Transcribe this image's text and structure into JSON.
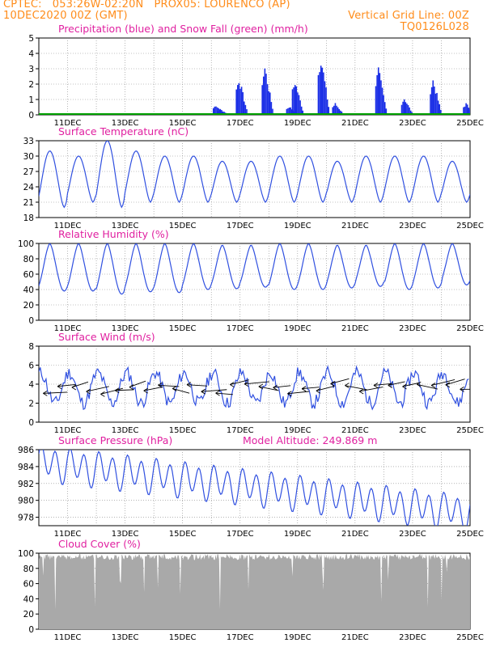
{
  "header": {
    "line1_left": "CPTEC:   053:26W-02:20N   PROX05: LOURENCO (AP)",
    "line2_left": "10DEC2020 00Z (GMT)",
    "line2_right": "Vertical Grid Line: 00Z",
    "line3_right": "TQ0126L028"
  },
  "colors": {
    "header": "#ff8c1a",
    "title": "#e020a0",
    "precip": "#1a2ee6",
    "snow": "#00a000",
    "line": "#3050e0",
    "wind_arrow": "#000000",
    "cloud": "#a9a9a9",
    "grid": "#888888"
  },
  "x_labels": [
    "11DEC",
    "13DEC",
    "15DEC",
    "17DEC",
    "19DEC",
    "21DEC",
    "23DEC",
    "25DEC"
  ],
  "chart_data": [
    {
      "type": "bar",
      "title": "Precipitation (blue) and Snow Fall (green) (mm/h)",
      "ylim": [
        0,
        5
      ],
      "yticks": [
        0,
        1,
        2,
        3,
        4,
        5
      ],
      "series": [
        {
          "name": "Precipitation",
          "color": "#1a2ee6",
          "bursts": [
            {
              "day": 6.05,
              "peak": 0.7
            },
            {
              "day": 6.2,
              "peak": 0.4
            },
            {
              "day": 6.85,
              "peak": 2.6
            },
            {
              "day": 7.75,
              "peak": 3.4
            },
            {
              "day": 8.6,
              "peak": 0.6
            },
            {
              "day": 8.8,
              "peak": 2.4
            },
            {
              "day": 9.7,
              "peak": 4.2
            },
            {
              "day": 10.2,
              "peak": 0.8
            },
            {
              "day": 11.7,
              "peak": 3.2
            },
            {
              "day": 12.6,
              "peak": 1.2
            },
            {
              "day": 13.6,
              "peak": 2.5
            },
            {
              "day": 14.75,
              "peak": 0.8
            }
          ]
        },
        {
          "name": "Snow Fall",
          "color": "#00a000",
          "value": 0
        }
      ]
    },
    {
      "type": "line",
      "title": "Surface Temperature (nC)",
      "ylim": [
        18,
        33
      ],
      "yticks": [
        18,
        21,
        24,
        27,
        30,
        33
      ],
      "series": [
        {
          "name": "Temperature",
          "daily_max": [
            31,
            30,
            33,
            31,
            30,
            30,
            29,
            29,
            30,
            30,
            29,
            30,
            30,
            30,
            29
          ],
          "daily_min": [
            20,
            21,
            20,
            21,
            21,
            21,
            21,
            21,
            21,
            21,
            21,
            21,
            21,
            21,
            21
          ]
        }
      ]
    },
    {
      "type": "line",
      "title": "Relative Humidity (%)",
      "ylim": [
        0,
        100
      ],
      "yticks": [
        0,
        20,
        40,
        60,
        80,
        100
      ],
      "series": [
        {
          "name": "Relative Humidity",
          "daily_max": [
            100,
            100,
            100,
            100,
            100,
            100,
            98,
            98,
            100,
            100,
            98,
            98,
            100,
            100,
            100
          ],
          "daily_min": [
            38,
            38,
            34,
            37,
            36,
            40,
            41,
            43,
            40,
            40,
            42,
            44,
            40,
            42,
            46
          ]
        }
      ]
    },
    {
      "type": "line",
      "title": "Surface Wind (m/s)",
      "ylim": [
        0,
        8
      ],
      "yticks": [
        0,
        2,
        4,
        6,
        8
      ],
      "series": [
        {
          "name": "Wind speed",
          "range": [
            1,
            7
          ]
        }
      ]
    },
    {
      "type": "line",
      "title": "Surface Pressure (hPa)",
      "annotation": "Model Altitude: 249.869 m",
      "ylim": [
        977,
        986
      ],
      "yticks": [
        978,
        980,
        982,
        984,
        986
      ],
      "series": [
        {
          "name": "Pressure",
          "trend_start": 984.5,
          "trend_end": 978.5,
          "amplitude": 1.8
        }
      ]
    },
    {
      "type": "area",
      "title": "Cloud Cover (%)",
      "ylim": [
        0,
        100
      ],
      "yticks": [
        0,
        20,
        40,
        60,
        80,
        100
      ],
      "series": [
        {
          "name": "Cloud Cover",
          "typical": 95
        }
      ]
    }
  ]
}
